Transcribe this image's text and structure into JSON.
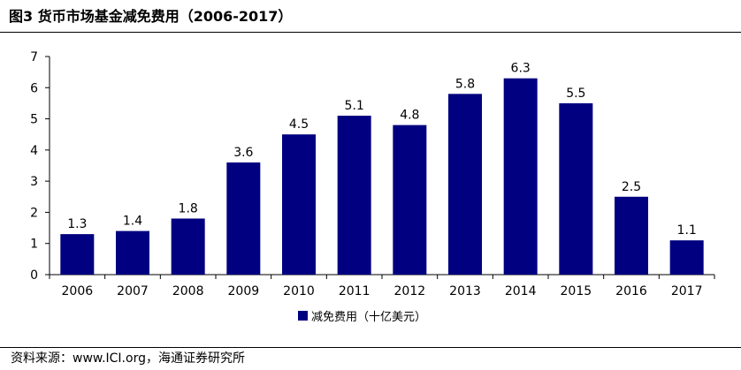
{
  "figure": {
    "title": "图3  货币市场基金减免费用（2006-2017）",
    "source": "资料来源：www.ICI.org，海通证券研究所"
  },
  "colors": {
    "bar": "#000080",
    "axis": "#000000"
  },
  "chart_data": {
    "type": "bar",
    "categories": [
      "2006",
      "2007",
      "2008",
      "2009",
      "2010",
      "2011",
      "2012",
      "2013",
      "2014",
      "2015",
      "2016",
      "2017"
    ],
    "series": [
      {
        "name": "减免费用（十亿美元）",
        "values": [
          1.3,
          1.4,
          1.8,
          3.6,
          4.5,
          5.1,
          4.8,
          5.8,
          6.3,
          5.5,
          2.5,
          1.1
        ]
      }
    ],
    "y_ticks": [
      0,
      1,
      2,
      3,
      4,
      5,
      6,
      7
    ],
    "ylim": [
      0,
      7
    ],
    "data_labels": true,
    "legend": "bottom",
    "grid": false
  }
}
